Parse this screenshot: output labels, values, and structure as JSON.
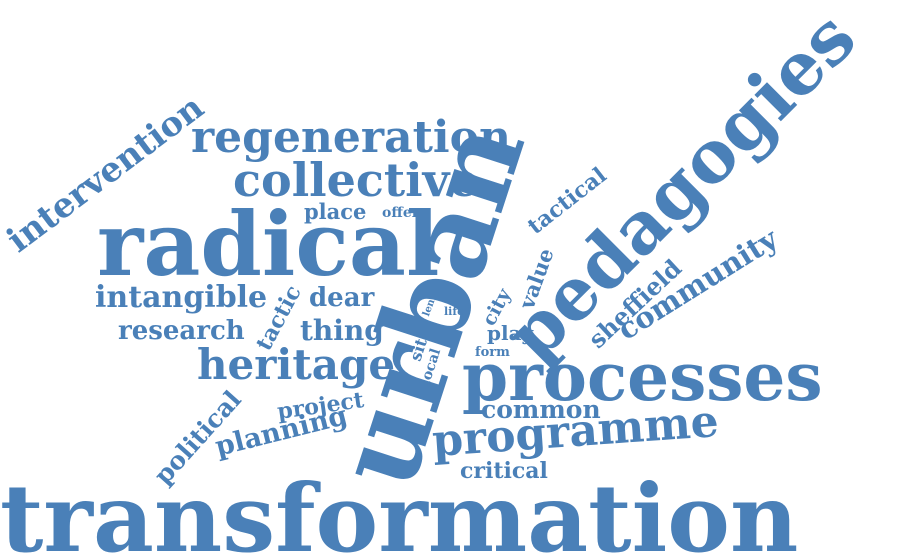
{
  "colors": {
    "word": "#4a80b8",
    "background": "#ffffff"
  },
  "words": {
    "transformation": "transformation",
    "urban": "urban",
    "pedagogies": "pedagogies",
    "radical": "radical",
    "processes": "processes",
    "regeneration": "regeneration",
    "collective": "collective",
    "intervention": "intervention",
    "heritage": "heritage",
    "programme": "programme",
    "community": "community",
    "intangible": "intangible",
    "sheffield": "sheffield",
    "research": "research",
    "thing": "thing",
    "planning": "planning",
    "political": "political",
    "common": "common",
    "project": "project",
    "dear": "dear",
    "place": "place",
    "tactical": "tactical",
    "value": "value",
    "tactic": "tactic",
    "critical": "critical",
    "play": "play",
    "city": "city",
    "site": "site",
    "local": "local",
    "offer": "offer",
    "form": "form",
    "life": "life",
    "len": "len"
  }
}
